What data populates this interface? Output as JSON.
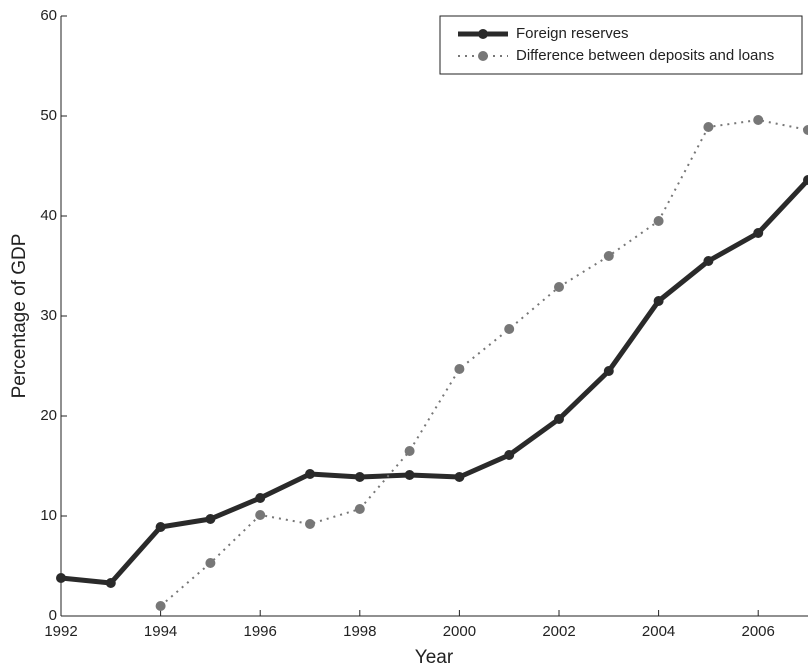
{
  "chart_data": {
    "type": "line",
    "x_label": "Year",
    "y_label": "Percentage of GDP",
    "x": [
      1992,
      1993,
      1994,
      1995,
      1996,
      1997,
      1998,
      1999,
      2000,
      2001,
      2002,
      2003,
      2004,
      2005,
      2006,
      2007
    ],
    "series": [
      {
        "name": "Foreign reserves",
        "color": "#2a2a2a",
        "style": "solid",
        "values": [
          3.8,
          3.3,
          8.9,
          9.7,
          11.8,
          14.2,
          13.9,
          14.1,
          13.9,
          16.1,
          19.7,
          24.5,
          31.5,
          35.5,
          38.3,
          43.6
        ]
      },
      {
        "name": "Difference between deposits and loans",
        "color": "#777777",
        "style": "dotted",
        "values": [
          null,
          null,
          1.0,
          5.3,
          10.1,
          9.2,
          10.7,
          16.5,
          24.7,
          28.7,
          32.9,
          36.0,
          39.5,
          48.9,
          49.6,
          48.6
        ]
      }
    ],
    "xlim": [
      1992,
      2007
    ],
    "ylim": [
      0,
      60
    ],
    "xticks": [
      1992,
      1994,
      1996,
      1998,
      2000,
      2002,
      2004,
      2006
    ],
    "yticks": [
      0,
      10,
      20,
      30,
      40,
      50,
      60
    ],
    "grid": false,
    "legend": "upper right"
  }
}
